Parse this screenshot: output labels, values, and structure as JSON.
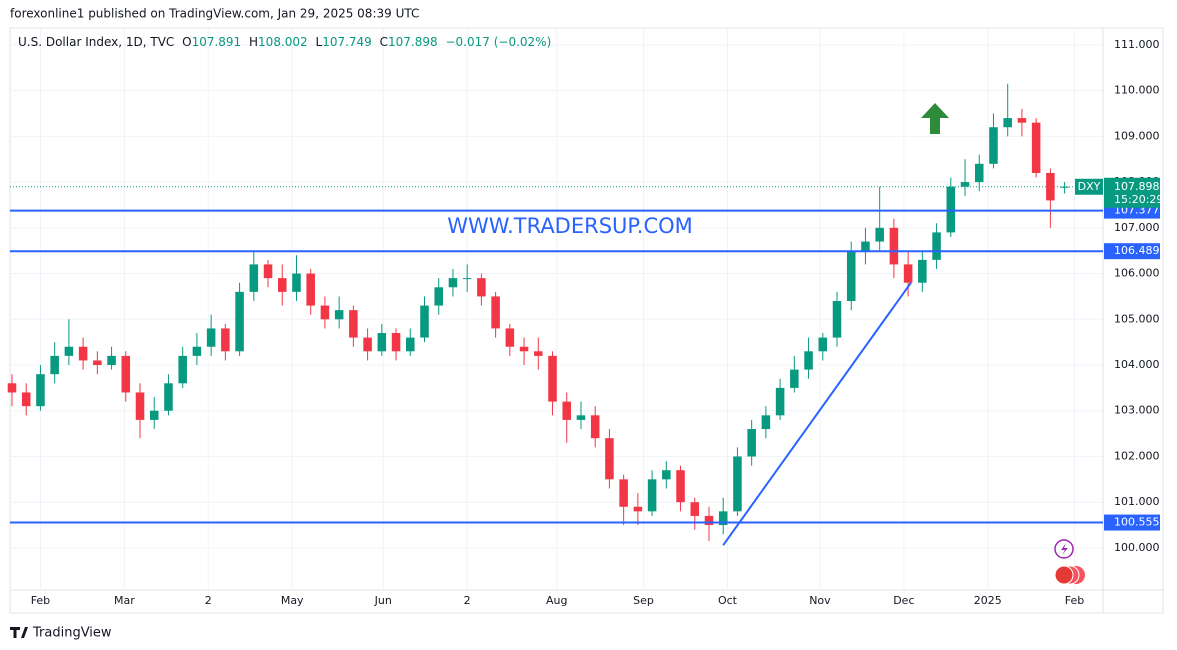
{
  "header": {
    "publisher": "forexonline1 published on TradingView.com, Jan 29, 2025 08:39 UTC",
    "symbol": "U.S. Dollar Index, 1D, TVC",
    "ohlc": [
      {
        "key": "O",
        "value": "107.891"
      },
      {
        "key": "H",
        "value": "108.002"
      },
      {
        "key": "L",
        "value": "107.749"
      },
      {
        "key": "C",
        "value": "107.898"
      }
    ],
    "change": "−0.017 (−0.02%)"
  },
  "chart_data": {
    "type": "candlestick",
    "ohlc": {
      "open": [
        103.6,
        103.4,
        103.1,
        103.8,
        104.2,
        104.4,
        104.1,
        104.0,
        104.2,
        103.4,
        102.8,
        103.0,
        103.6,
        104.2,
        104.4,
        104.8,
        104.3,
        105.6,
        106.2,
        105.9,
        105.6,
        106.0,
        105.3,
        105.0,
        105.2,
        104.6,
        104.3,
        104.7,
        104.3,
        104.6,
        105.3,
        105.7,
        105.9,
        105.9,
        105.5,
        104.8,
        104.4,
        104.3,
        104.2,
        103.2,
        102.8,
        102.9,
        102.4,
        101.5,
        100.9,
        100.8,
        101.5,
        101.7,
        101.0,
        100.7,
        100.5,
        100.8,
        102.0,
        102.6,
        102.9,
        103.5,
        103.9,
        104.3,
        104.6,
        105.4,
        106.5,
        106.7,
        107.0,
        106.2,
        105.8,
        106.3,
        106.9,
        107.9,
        108.0,
        108.4,
        109.2,
        109.4,
        109.3,
        108.2,
        107.891
      ],
      "high": [
        103.8,
        103.6,
        104.0,
        104.5,
        105.0,
        104.6,
        104.3,
        104.4,
        104.3,
        103.6,
        103.3,
        103.8,
        104.4,
        104.7,
        105.1,
        104.9,
        105.8,
        106.5,
        106.3,
        106.2,
        106.4,
        106.1,
        105.5,
        105.5,
        105.3,
        104.8,
        104.9,
        104.8,
        104.8,
        105.5,
        105.9,
        106.1,
        106.2,
        106.0,
        105.6,
        104.9,
        104.6,
        104.6,
        104.3,
        103.4,
        103.2,
        103.1,
        102.6,
        101.6,
        101.2,
        101.7,
        101.9,
        101.8,
        101.1,
        100.9,
        101.1,
        102.2,
        102.8,
        103.1,
        103.7,
        104.2,
        104.6,
        104.7,
        105.6,
        106.7,
        107.0,
        107.9,
        107.2,
        106.5,
        106.5,
        107.1,
        108.1,
        108.5,
        108.6,
        109.5,
        110.15,
        109.6,
        109.4,
        108.3,
        108.002
      ],
      "low": [
        103.1,
        102.9,
        103.0,
        103.6,
        104.0,
        103.9,
        103.8,
        103.9,
        103.2,
        102.4,
        102.6,
        102.9,
        103.5,
        104.0,
        104.2,
        104.1,
        104.2,
        105.4,
        105.7,
        105.3,
        105.4,
        105.1,
        104.8,
        104.8,
        104.4,
        104.1,
        104.2,
        104.1,
        104.2,
        104.5,
        105.1,
        105.5,
        105.6,
        105.3,
        104.6,
        104.2,
        104.0,
        103.9,
        102.9,
        102.3,
        102.6,
        102.2,
        101.3,
        100.5,
        100.5,
        100.7,
        101.3,
        100.8,
        100.4,
        100.15,
        100.3,
        100.7,
        101.8,
        102.4,
        102.8,
        103.4,
        103.7,
        104.1,
        104.4,
        105.2,
        106.2,
        106.5,
        105.9,
        105.5,
        105.6,
        106.1,
        106.8,
        107.7,
        107.8,
        108.3,
        109.0,
        109.0,
        108.1,
        107.0,
        107.749
      ],
      "close": [
        103.4,
        103.1,
        103.8,
        104.2,
        104.4,
        104.1,
        104.0,
        104.2,
        103.4,
        102.8,
        103.0,
        103.6,
        104.2,
        104.4,
        104.8,
        104.3,
        105.6,
        106.2,
        105.9,
        105.6,
        106.0,
        105.3,
        105.0,
        105.2,
        104.6,
        104.3,
        104.7,
        104.3,
        104.6,
        105.3,
        105.7,
        105.9,
        105.9,
        105.5,
        104.8,
        104.4,
        104.3,
        104.2,
        103.2,
        102.8,
        102.9,
        102.4,
        101.5,
        100.9,
        100.8,
        101.5,
        101.7,
        101.0,
        100.7,
        100.5,
        100.8,
        102.0,
        102.6,
        102.9,
        103.5,
        103.9,
        104.3,
        104.6,
        105.4,
        106.5,
        106.7,
        107.0,
        106.2,
        105.8,
        106.3,
        106.9,
        107.9,
        108.0,
        108.4,
        109.2,
        109.4,
        109.3,
        108.2,
        107.6,
        107.898
      ]
    },
    "up_color": "#089981",
    "down_color": "#f23645",
    "ylim": [
      99.08,
      111.37
    ],
    "yticks": [
      {
        "value": 100,
        "label": "100.000"
      },
      {
        "value": 101,
        "label": "101.000"
      },
      {
        "value": 102,
        "label": "102.000"
      },
      {
        "value": 103,
        "label": "103.000"
      },
      {
        "value": 104,
        "label": "104.000"
      },
      {
        "value": 105,
        "label": "105.000"
      },
      {
        "value": 106,
        "label": "106.000"
      },
      {
        "value": 107,
        "label": "107.000"
      },
      {
        "value": 108,
        "label": "108.000"
      },
      {
        "value": 109,
        "label": "109.000"
      },
      {
        "value": 110,
        "label": "110.000"
      },
      {
        "value": 111,
        "label": "111.000"
      }
    ],
    "xlim": [
      -0.14,
      76.7
    ],
    "xticks": [
      {
        "value": 2,
        "label": "Feb"
      },
      {
        "value": 7.9,
        "label": "Mar"
      },
      {
        "value": 13.8,
        "label": "2"
      },
      {
        "value": 19.7,
        "label": "May"
      },
      {
        "value": 26.1,
        "label": "Jun"
      },
      {
        "value": 32,
        "label": "2"
      },
      {
        "value": 38.3,
        "label": "Aug"
      },
      {
        "value": 44.4,
        "label": "Sep"
      },
      {
        "value": 50.3,
        "label": "Oct"
      },
      {
        "value": 56.8,
        "label": "Nov"
      },
      {
        "value": 62.7,
        "label": "Dec"
      },
      {
        "value": 68.6,
        "label": "2025"
      },
      {
        "value": 74.7,
        "label": "Feb"
      }
    ],
    "grid": true,
    "levels": [
      107.377,
      106.489,
      100.555
    ],
    "level_color": "#2962ff",
    "last_price": {
      "value": 107.898,
      "symbol": "DXY",
      "countdown": "15:20:29"
    },
    "trendline": {
      "x": [
        50,
        63.2
      ],
      "y": [
        100.06,
        105.8
      ]
    },
    "watermark": "WWW.TRADERSUP.COM"
  },
  "footer": {
    "brand": "TradingView"
  }
}
